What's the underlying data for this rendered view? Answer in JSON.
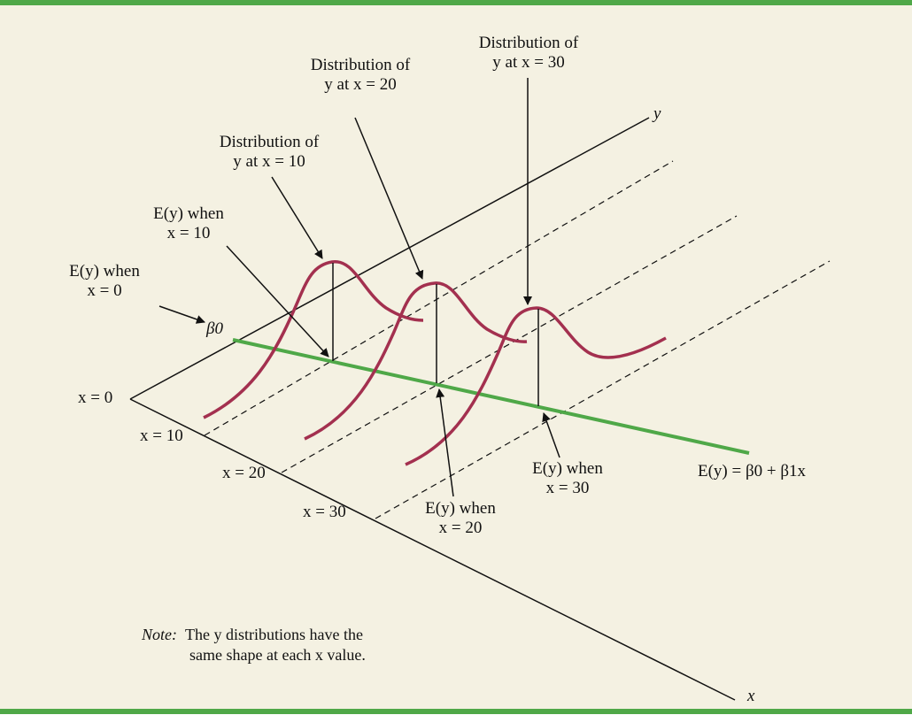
{
  "colors": {
    "frame_bar": "#4fa848",
    "panel_background": "#f4f1e2",
    "distribution_curve": "#a3304f",
    "regression_line": "#4fa848",
    "axis_lines": "#111111"
  },
  "axes": {
    "y_label": "y",
    "x_label": "x",
    "x_ticks": [
      "x = 0",
      "x = 10",
      "x = 20",
      "x = 30"
    ]
  },
  "labels": {
    "dist_x10": [
      "Distribution of",
      "y at x = 10"
    ],
    "dist_x20": [
      "Distribution of",
      "y at x = 20"
    ],
    "dist_x30": [
      "Distribution of",
      "y at x = 30"
    ],
    "ey_x0": [
      "E(y) when",
      "x = 0"
    ],
    "ey_x10": [
      "E(y) when",
      "x = 10"
    ],
    "ey_x20": [
      "E(y) when",
      "x = 20"
    ],
    "ey_x30": [
      "E(y) when",
      "x = 30"
    ],
    "beta0": "β0",
    "regression_equation": "E(y) = β0 + β1x"
  },
  "note": {
    "prefix": "Note:",
    "line1": "The y distributions have the",
    "line2": "same shape at each x value."
  }
}
